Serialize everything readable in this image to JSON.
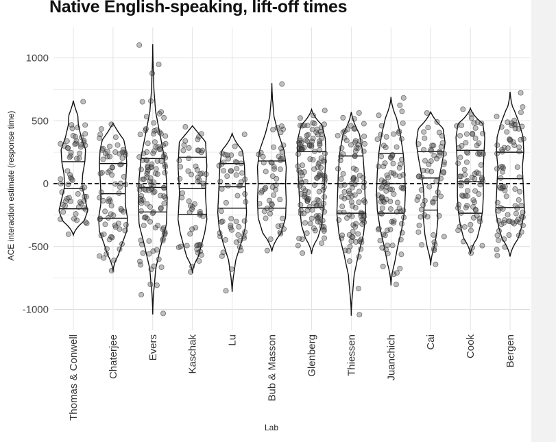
{
  "chart_data": {
    "type": "violin",
    "title": "Native English-speaking, lift-off times",
    "xlabel": "Lab",
    "ylabel": "ACE interaction estimate (response time)",
    "ylim": [
      -1100,
      1260
    ],
    "yticks": [
      -1000,
      -500,
      0,
      500,
      1000
    ],
    "reference_line": 0,
    "grid": true,
    "categories": [
      "Thomas & Conwell",
      "Chaterjee",
      "Evers",
      "Kaschak",
      "Lu",
      "Bub & Masson",
      "Glenberg",
      "Thiessen",
      "Juanchich",
      "Cai",
      "Cook",
      "Bergen"
    ],
    "violins": [
      {
        "lab": "Thomas & Conwell",
        "min": -410,
        "max": 660,
        "quartiles": [
          -200,
          -40,
          175
        ],
        "n": 60,
        "profile": [
          0.25,
          0.7,
          1.0,
          0.8,
          0.6,
          0.65,
          0.8,
          0.85,
          0.55,
          0.35,
          0.3,
          0.2
        ]
      },
      {
        "lab": "Chaterjee",
        "min": -700,
        "max": 480,
        "quartiles": [
          -275,
          -80,
          160
        ],
        "n": 70,
        "profile": [
          0.08,
          0.3,
          0.6,
          0.95,
          1.0,
          0.85,
          0.85,
          0.9,
          0.95,
          0.9,
          0.7,
          0.6
        ]
      },
      {
        "lab": "Evers",
        "min": -1040,
        "max": 1110,
        "quartiles": [
          -225,
          -30,
          200
        ],
        "n": 120,
        "profile": [
          0.03,
          0.08,
          0.2,
          0.55,
          0.95,
          1.0,
          0.95,
          0.8,
          0.5,
          0.2,
          0.08,
          0.04,
          0.02
        ]
      },
      {
        "lab": "Kaschak",
        "min": -710,
        "max": 460,
        "quartiles": [
          -245,
          -40,
          210
        ],
        "n": 55,
        "profile": [
          0.1,
          0.35,
          0.6,
          0.85,
          1.0,
          0.95,
          0.9,
          0.95,
          1.0,
          0.95,
          0.9,
          0.85
        ]
      },
      {
        "lab": "Lu",
        "min": -860,
        "max": 400,
        "quartiles": [
          -195,
          -25,
          160
        ],
        "n": 55,
        "profile": [
          0.05,
          0.1,
          0.25,
          0.6,
          0.9,
          1.0,
          0.95,
          0.9,
          0.85,
          0.7,
          0.35
        ]
      },
      {
        "lab": "Bub & Masson",
        "min": -540,
        "max": 800,
        "quartiles": [
          -195,
          0,
          180
        ],
        "n": 50,
        "profile": [
          0.2,
          0.6,
          0.95,
          1.0,
          0.95,
          1.0,
          0.85,
          0.45,
          0.15,
          0.05,
          0.03
        ]
      },
      {
        "lab": "Glenberg",
        "min": -560,
        "max": 590,
        "quartiles": [
          -190,
          0,
          255
        ],
        "n": 130,
        "profile": [
          0.1,
          0.4,
          0.7,
          0.8,
          0.85,
          0.9,
          0.95,
          1.0,
          0.95,
          0.7,
          0.3
        ]
      },
      {
        "lab": "Thiessen",
        "min": -1050,
        "max": 570,
        "quartiles": [
          -235,
          0,
          220
        ],
        "n": 100,
        "profile": [
          0.02,
          0.08,
          0.2,
          0.5,
          0.85,
          1.0,
          0.95,
          0.9,
          0.8,
          0.55,
          0.25
        ]
      },
      {
        "lab": "Juanchich",
        "min": -810,
        "max": 690,
        "quartiles": [
          -235,
          0,
          240
        ],
        "n": 90,
        "profile": [
          0.05,
          0.2,
          0.45,
          0.75,
          0.95,
          1.0,
          0.95,
          0.85,
          0.65,
          0.35,
          0.1
        ]
      },
      {
        "lab": "Cai",
        "min": -650,
        "max": 570,
        "quartiles": [
          -210,
          45,
          255
        ],
        "n": 60,
        "profile": [
          0.05,
          0.2,
          0.4,
          0.5,
          0.45,
          0.5,
          0.65,
          0.85,
          1.0,
          0.85,
          0.5
        ]
      },
      {
        "lab": "Cook",
        "min": -560,
        "max": 600,
        "quartiles": [
          -235,
          15,
          265
        ],
        "n": 75,
        "profile": [
          0.15,
          0.45,
          0.7,
          0.85,
          0.9,
          0.9,
          0.9,
          0.95,
          1.0,
          0.85,
          0.35
        ]
      },
      {
        "lab": "Bergen",
        "min": -580,
        "max": 730,
        "quartiles": [
          -190,
          40,
          250
        ],
        "n": 80,
        "profile": [
          0.2,
          0.5,
          0.8,
          1.0,
          0.95,
          0.9,
          0.85,
          0.95,
          0.9,
          0.6,
          0.2,
          0.08
        ]
      }
    ]
  }
}
